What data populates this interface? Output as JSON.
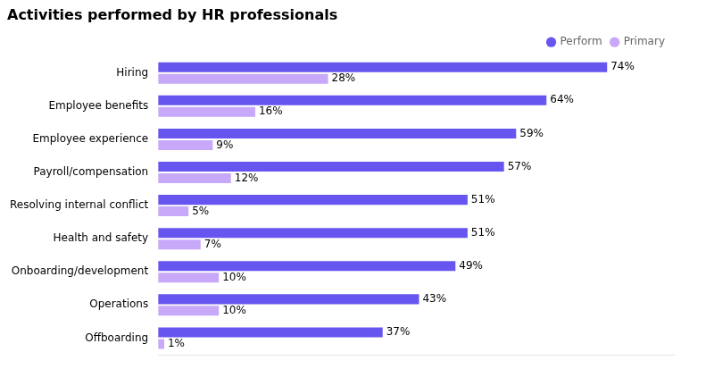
{
  "chart_data": {
    "type": "bar",
    "orientation": "horizontal",
    "title": "Activities performed by HR professionals",
    "categories": [
      "Hiring",
      "Employee benefits",
      "Employee experience",
      "Payroll/compensation",
      "Resolving internal conflict",
      "Health and safety",
      "Onboarding/development",
      "Operations",
      "Offboarding"
    ],
    "series": [
      {
        "name": "Perform",
        "color": "#6655ee",
        "values": [
          74,
          64,
          59,
          57,
          51,
          51,
          49,
          43,
          37
        ],
        "value_labels": [
          "74%",
          "64%",
          "59%",
          "57%",
          "51%",
          "51%",
          "49%",
          "43%",
          "37%"
        ]
      },
      {
        "name": "Primary",
        "color": "#c8a8f8",
        "values": [
          28,
          16,
          9,
          12,
          5,
          7,
          10,
          10,
          1
        ],
        "value_labels": [
          "28%",
          "16%",
          "9%",
          "12%",
          "5%",
          "7%",
          "10%",
          "10%",
          "1%"
        ]
      }
    ],
    "xlim": [
      0,
      85
    ],
    "grid": false,
    "legend": "top",
    "data_labels": true,
    "tick_labels": "y"
  }
}
